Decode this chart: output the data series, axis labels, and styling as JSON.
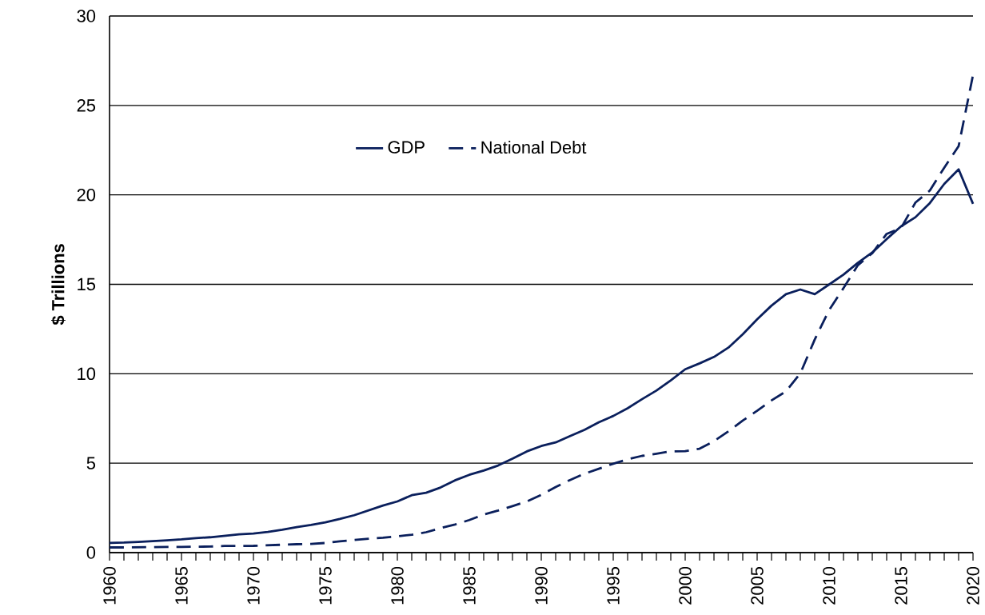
{
  "chart_data": {
    "type": "line",
    "ylabel": "$ Trillions",
    "xlim": [
      1960,
      2020
    ],
    "ylim": [
      0,
      30
    ],
    "yticks": [
      0,
      5,
      10,
      15,
      20,
      25,
      30
    ],
    "xticks": [
      1960,
      {
        "value": 1961,
        "label": null
      },
      {
        "value": 1962,
        "label": null
      },
      {
        "value": 1963,
        "label": null
      },
      {
        "value": 1964,
        "label": null
      },
      1965,
      {
        "value": 1966,
        "label": null
      },
      {
        "value": 1967,
        "label": null
      },
      {
        "value": 1968,
        "label": null
      },
      {
        "value": 1969,
        "label": null
      },
      1970,
      {
        "value": 1971,
        "label": null
      },
      {
        "value": 1972,
        "label": null
      },
      {
        "value": 1973,
        "label": null
      },
      {
        "value": 1974,
        "label": null
      },
      1975,
      {
        "value": 1976,
        "label": null
      },
      {
        "value": 1977,
        "label": null
      },
      {
        "value": 1978,
        "label": null
      },
      {
        "value": 1979,
        "label": null
      },
      1980,
      {
        "value": 1981,
        "label": null
      },
      {
        "value": 1982,
        "label": null
      },
      {
        "value": 1983,
        "label": null
      },
      {
        "value": 1984,
        "label": null
      },
      1985,
      {
        "value": 1986,
        "label": null
      },
      {
        "value": 1987,
        "label": null
      },
      {
        "value": 1988,
        "label": null
      },
      {
        "value": 1989,
        "label": null
      },
      1990,
      {
        "value": 1991,
        "label": null
      },
      {
        "value": 1992,
        "label": null
      },
      {
        "value": 1993,
        "label": null
      },
      {
        "value": 1994,
        "label": null
      },
      1995,
      {
        "value": 1996,
        "label": null
      },
      {
        "value": 1997,
        "label": null
      },
      {
        "value": 1998,
        "label": null
      },
      {
        "value": 1999,
        "label": null
      },
      2000,
      {
        "value": 2001,
        "label": null
      },
      {
        "value": 2002,
        "label": null
      },
      {
        "value": 2003,
        "label": null
      },
      {
        "value": 2004,
        "label": null
      },
      2005,
      {
        "value": 2006,
        "label": null
      },
      {
        "value": 2007,
        "label": null
      },
      {
        "value": 2008,
        "label": null
      },
      {
        "value": 2009,
        "label": null
      },
      2010,
      {
        "value": 2011,
        "label": null
      },
      {
        "value": 2012,
        "label": null
      },
      {
        "value": 2013,
        "label": null
      },
      {
        "value": 2014,
        "label": null
      },
      2015,
      {
        "value": 2016,
        "label": null
      },
      {
        "value": 2017,
        "label": null
      },
      {
        "value": 2018,
        "label": null
      },
      {
        "value": 2019,
        "label": null
      },
      2020
    ],
    "x": [
      1960,
      1961,
      1962,
      1963,
      1964,
      1965,
      1966,
      1967,
      1968,
      1969,
      1970,
      1971,
      1972,
      1973,
      1974,
      1975,
      1976,
      1977,
      1978,
      1979,
      1980,
      1981,
      1982,
      1983,
      1984,
      1985,
      1986,
      1987,
      1988,
      1989,
      1990,
      1991,
      1992,
      1993,
      1994,
      1995,
      1996,
      1997,
      1998,
      1999,
      2000,
      2001,
      2002,
      2003,
      2004,
      2005,
      2006,
      2007,
      2008,
      2009,
      2010,
      2011,
      2012,
      2013,
      2014,
      2015,
      2016,
      2017,
      2018,
      2019,
      2020
    ],
    "grid": "y",
    "legend": "top",
    "series": [
      {
        "name": "GDP",
        "color": "#0a1f5c",
        "line_style": "solid",
        "values": [
          0.54,
          0.56,
          0.6,
          0.64,
          0.69,
          0.74,
          0.81,
          0.86,
          0.94,
          1.02,
          1.07,
          1.16,
          1.28,
          1.43,
          1.55,
          1.69,
          1.88,
          2.09,
          2.36,
          2.63,
          2.86,
          3.21,
          3.35,
          3.64,
          4.04,
          4.35,
          4.59,
          4.87,
          5.25,
          5.66,
          5.96,
          6.16,
          6.52,
          6.86,
          7.29,
          7.64,
          8.07,
          8.58,
          9.06,
          9.63,
          10.25,
          10.58,
          10.94,
          11.46,
          12.21,
          13.04,
          13.81,
          14.45,
          14.71,
          14.45,
          14.99,
          15.54,
          16.2,
          16.78,
          17.53,
          18.24,
          18.75,
          19.54,
          20.61,
          21.43,
          19.5
        ]
      },
      {
        "name": "National Debt",
        "color": "#0a1f5c",
        "line_style": "dashed",
        "values": [
          0.29,
          0.29,
          0.3,
          0.31,
          0.32,
          0.32,
          0.33,
          0.34,
          0.37,
          0.37,
          0.38,
          0.41,
          0.44,
          0.47,
          0.49,
          0.54,
          0.63,
          0.71,
          0.78,
          0.83,
          0.91,
          1.0,
          1.14,
          1.37,
          1.57,
          1.82,
          2.13,
          2.35,
          2.6,
          2.86,
          3.23,
          3.67,
          4.06,
          4.41,
          4.69,
          4.97,
          5.22,
          5.41,
          5.53,
          5.66,
          5.67,
          5.81,
          6.23,
          6.78,
          7.38,
          7.93,
          8.51,
          9.01,
          10.02,
          11.91,
          13.56,
          14.79,
          16.07,
          16.74,
          17.82,
          18.15,
          19.57,
          20.24,
          21.52,
          22.72,
          26.7
        ]
      }
    ]
  }
}
